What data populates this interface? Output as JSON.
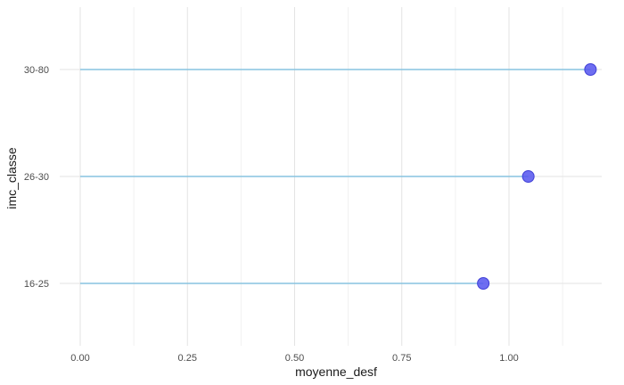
{
  "chart_data": {
    "type": "lollipop",
    "xlabel": "moyenne_desf",
    "ylabel": "imc_classe",
    "xlim": [
      0,
      1.2
    ],
    "x_ticks": [
      0.0,
      0.25,
      0.5,
      0.75,
      1.0
    ],
    "x_tick_labels": [
      "0.00",
      "0.25",
      "0.50",
      "0.75",
      "1.00"
    ],
    "categories": [
      "16-25",
      "26-30",
      "30-80"
    ],
    "values": [
      0.94,
      1.045,
      1.19
    ],
    "grid": true,
    "colors": {
      "stem": "#87c4e0",
      "point": "#5555ee",
      "point_stroke": "#3f3fd6",
      "grid_major": "#e3e3e3",
      "grid_minor": "#f1f1f1"
    }
  }
}
